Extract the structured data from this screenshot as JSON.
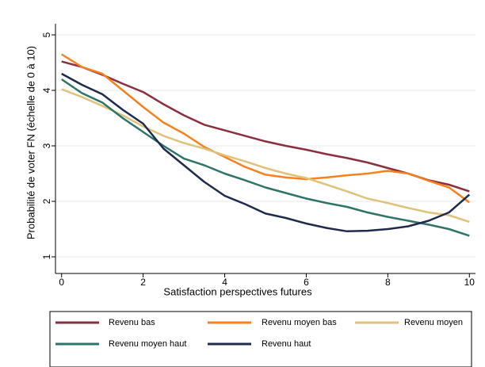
{
  "chart_data": {
    "type": "line",
    "x_label": "Satisfaction perspectives futures",
    "y_label": "Probabilité de voter FN (échelle de 0 à 10)",
    "x": [
      0,
      0.5,
      1,
      1.5,
      2,
      2.5,
      3,
      3.5,
      4,
      4.5,
      5,
      5.5,
      6,
      6.5,
      7,
      7.5,
      8,
      8.5,
      9,
      9.5,
      10
    ],
    "series": [
      {
        "name": "Revenu bas",
        "color": "#8b2f3f",
        "values": [
          4.52,
          4.42,
          4.28,
          4.12,
          3.97,
          3.75,
          3.55,
          3.38,
          3.28,
          3.18,
          3.08,
          3.0,
          2.93,
          2.85,
          2.78,
          2.7,
          2.6,
          2.5,
          2.38,
          2.3,
          2.18
        ]
      },
      {
        "name": "Revenu moyen bas",
        "color": "#f5821f",
        "values": [
          4.65,
          4.42,
          4.3,
          4.0,
          3.7,
          3.42,
          3.22,
          2.98,
          2.8,
          2.62,
          2.48,
          2.43,
          2.4,
          2.43,
          2.47,
          2.5,
          2.55,
          2.5,
          2.37,
          2.25,
          1.98
        ]
      },
      {
        "name": "Revenu moyen",
        "color": "#e0c27a",
        "values": [
          4.02,
          3.88,
          3.72,
          3.55,
          3.35,
          3.18,
          3.05,
          2.95,
          2.83,
          2.72,
          2.6,
          2.5,
          2.42,
          2.3,
          2.18,
          2.05,
          1.97,
          1.88,
          1.8,
          1.75,
          1.63
        ]
      },
      {
        "name": "Revenu moyen haut",
        "color": "#2e7468",
        "values": [
          4.2,
          3.95,
          3.78,
          3.5,
          3.25,
          3.0,
          2.77,
          2.65,
          2.5,
          2.38,
          2.25,
          2.15,
          2.05,
          1.97,
          1.9,
          1.8,
          1.72,
          1.65,
          1.58,
          1.5,
          1.38
        ]
      },
      {
        "name": "Revenu haut",
        "color": "#1f2a4f",
        "values": [
          4.3,
          4.1,
          3.93,
          3.65,
          3.4,
          2.95,
          2.65,
          2.35,
          2.1,
          1.95,
          1.78,
          1.7,
          1.6,
          1.52,
          1.46,
          1.47,
          1.5,
          1.55,
          1.65,
          1.8,
          2.12
        ]
      }
    ],
    "xlim": [
      -0.15,
      10.15
    ],
    "xticks": [
      0,
      2,
      4,
      6,
      8,
      10
    ],
    "ylim": [
      0.7,
      5.2
    ],
    "yticks": [
      1,
      2,
      3,
      4,
      5
    ],
    "grid": true
  }
}
